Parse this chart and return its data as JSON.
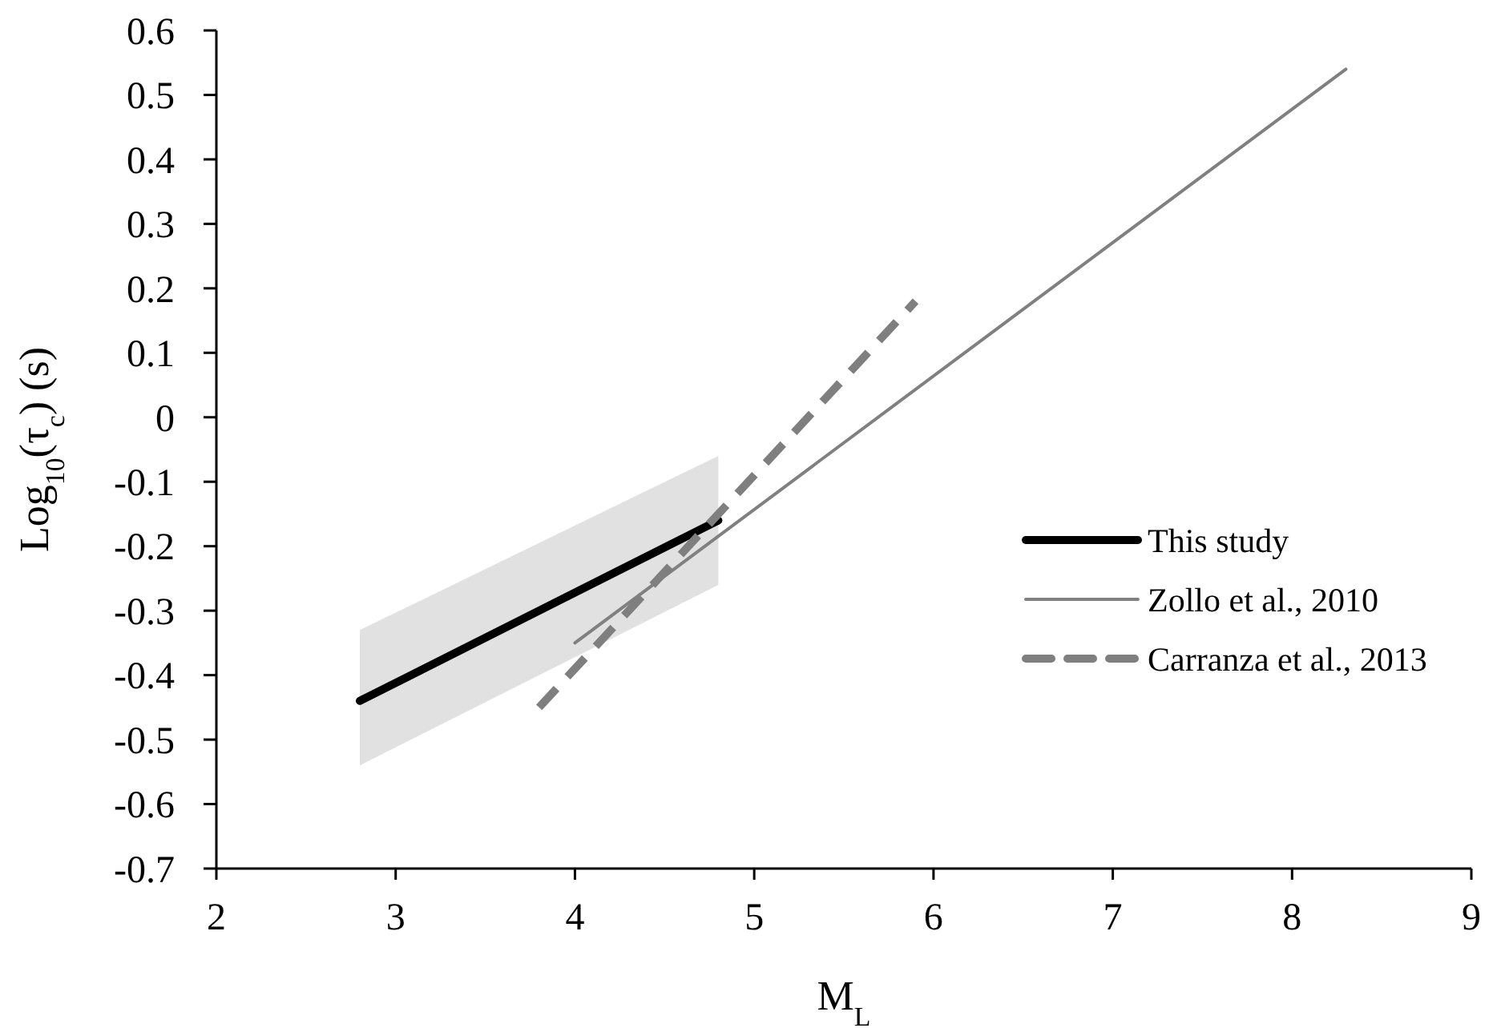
{
  "chart_data": {
    "type": "line",
    "xlabel": "M$_{L}$",
    "ylabel": "Log$_{10}$(τ$_{c}$) (s)",
    "xlim": [
      2,
      9
    ],
    "xticks": [
      2,
      3,
      4,
      5,
      6,
      7,
      8,
      9
    ],
    "ylim": [
      -0.7,
      0.6
    ],
    "yticks": [
      0.6,
      0.5,
      0.4,
      0.3,
      0.2,
      0.1,
      0,
      -0.1,
      -0.2,
      -0.3,
      -0.4,
      -0.5,
      -0.6,
      -0.7
    ],
    "legend": "right",
    "marker": "none",
    "series": [
      {
        "name": "This study",
        "color": "#000000",
        "x": [
          2.8,
          4.8
        ],
        "values": [
          -0.44,
          -0.16
        ],
        "lower": [
          -0.54,
          -0.26
        ],
        "upper": [
          -0.33,
          -0.06
        ],
        "line_style": "solid"
      },
      {
        "name": "Zollo et al., 2010",
        "color": "#808080",
        "x": [
          4.0,
          8.3
        ],
        "values": [
          -0.35,
          0.54
        ],
        "line_style": "solid"
      },
      {
        "name": "Carranza et al., 2013",
        "color": "#7f7f7f",
        "x": [
          3.8,
          5.9
        ],
        "values": [
          -0.45,
          0.18
        ],
        "line_style": "dashed"
      }
    ]
  }
}
